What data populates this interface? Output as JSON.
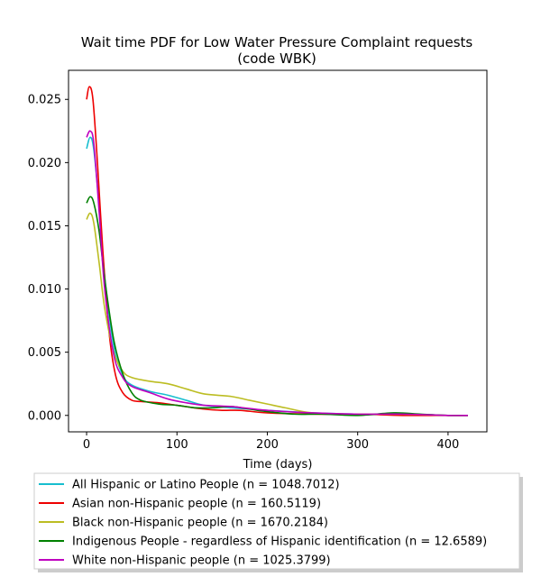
{
  "chart_data": {
    "type": "line",
    "title_line1": "Wait time PDF for Low Water Pressure Complaint  requests",
    "title_line2": "(code WBK)",
    "xlabel": "Time (days)",
    "ylabel": "",
    "xlim": [
      -20,
      443
    ],
    "ylim": [
      -0.0013,
      0.0273
    ],
    "xticks": [
      0,
      100,
      200,
      300,
      400
    ],
    "yticks": [
      0.0,
      0.005,
      0.01,
      0.015,
      0.02,
      0.025
    ],
    "xtick_labels": [
      "0",
      "100",
      "200",
      "300",
      "400"
    ],
    "ytick_labels": [
      "0.000",
      "0.005",
      "0.010",
      "0.015",
      "0.020",
      "0.025"
    ],
    "grid": false,
    "legend_position": "bottom, below axes",
    "series": [
      {
        "name": "All Hispanic or Latino People (n = 1048.7012)",
        "color": "#17becf",
        "x": [
          0,
          4,
          8,
          14,
          20,
          30,
          40,
          50,
          70,
          90,
          110,
          130,
          160,
          200,
          250,
          300,
          350,
          400,
          422
        ],
        "y": [
          0.0211,
          0.022,
          0.021,
          0.0165,
          0.011,
          0.0055,
          0.0032,
          0.0024,
          0.0019,
          0.0016,
          0.0012,
          0.0008,
          0.0006,
          0.0004,
          0.0002,
          0.0001,
          0.0001,
          0.0,
          0.0
        ]
      },
      {
        "name": "Asian non-Hispanic people (n = 160.5119)",
        "color": "#ee0000",
        "x": [
          0,
          3,
          7,
          12,
          18,
          25,
          32,
          40,
          50,
          60,
          80,
          100,
          130,
          150,
          170,
          200,
          250,
          300,
          350,
          400,
          422
        ],
        "y": [
          0.025,
          0.026,
          0.025,
          0.02,
          0.013,
          0.0065,
          0.0032,
          0.0018,
          0.0012,
          0.0011,
          0.001,
          0.0008,
          0.0005,
          0.0004,
          0.0004,
          0.0002,
          0.0001,
          0.0001,
          0.0,
          0.0,
          0.0
        ]
      },
      {
        "name": "Black non-Hispanic people (n = 1670.2184)",
        "color": "#bcbd22",
        "x": [
          0,
          4,
          8,
          14,
          20,
          30,
          40,
          50,
          70,
          90,
          110,
          130,
          160,
          180,
          200,
          220,
          250,
          300,
          350,
          400,
          422
        ],
        "y": [
          0.0155,
          0.016,
          0.0152,
          0.012,
          0.0085,
          0.005,
          0.0035,
          0.003,
          0.0027,
          0.0025,
          0.0021,
          0.0017,
          0.0015,
          0.0012,
          0.0009,
          0.0006,
          0.0002,
          0.0001,
          0.0001,
          0.0,
          0.0
        ]
      },
      {
        "name": "Indigenous People - regardless of Hispanic identification (n = 12.6589)",
        "color": "#008000",
        "x": [
          0,
          4,
          8,
          14,
          20,
          30,
          40,
          50,
          60,
          80,
          100,
          120,
          140,
          160,
          180,
          200,
          230,
          260,
          300,
          340,
          370,
          400,
          422
        ],
        "y": [
          0.0168,
          0.0173,
          0.0168,
          0.0145,
          0.0108,
          0.006,
          0.0033,
          0.0018,
          0.0012,
          0.0009,
          0.0008,
          0.0006,
          0.0006,
          0.0007,
          0.0005,
          0.0003,
          0.0001,
          0.0001,
          0.0,
          0.0002,
          0.0001,
          0.0,
          0.0
        ]
      },
      {
        "name": "White non-Hispanic people (n = 1025.3799)",
        "color": "#bf00bf",
        "x": [
          0,
          4,
          8,
          14,
          20,
          30,
          40,
          50,
          70,
          90,
          110,
          130,
          160,
          200,
          250,
          300,
          350,
          400,
          422
        ],
        "y": [
          0.022,
          0.0225,
          0.0215,
          0.016,
          0.01,
          0.0048,
          0.003,
          0.0023,
          0.0018,
          0.0013,
          0.001,
          0.0008,
          0.0007,
          0.0004,
          0.0002,
          0.0001,
          0.0001,
          0.0,
          0.0
        ]
      }
    ]
  }
}
